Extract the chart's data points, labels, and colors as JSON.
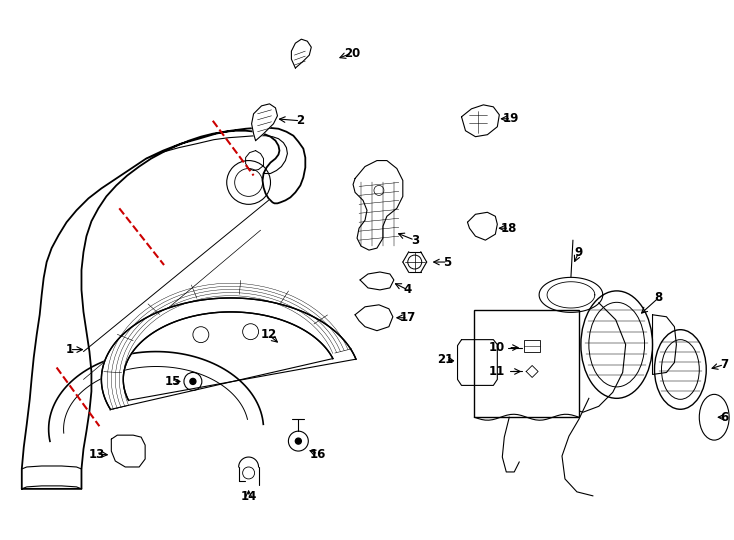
{
  "bg_color": "#ffffff",
  "line_color": "#000000",
  "red_color": "#cc0000",
  "figsize": [
    7.34,
    5.4
  ],
  "dpi": 100
}
